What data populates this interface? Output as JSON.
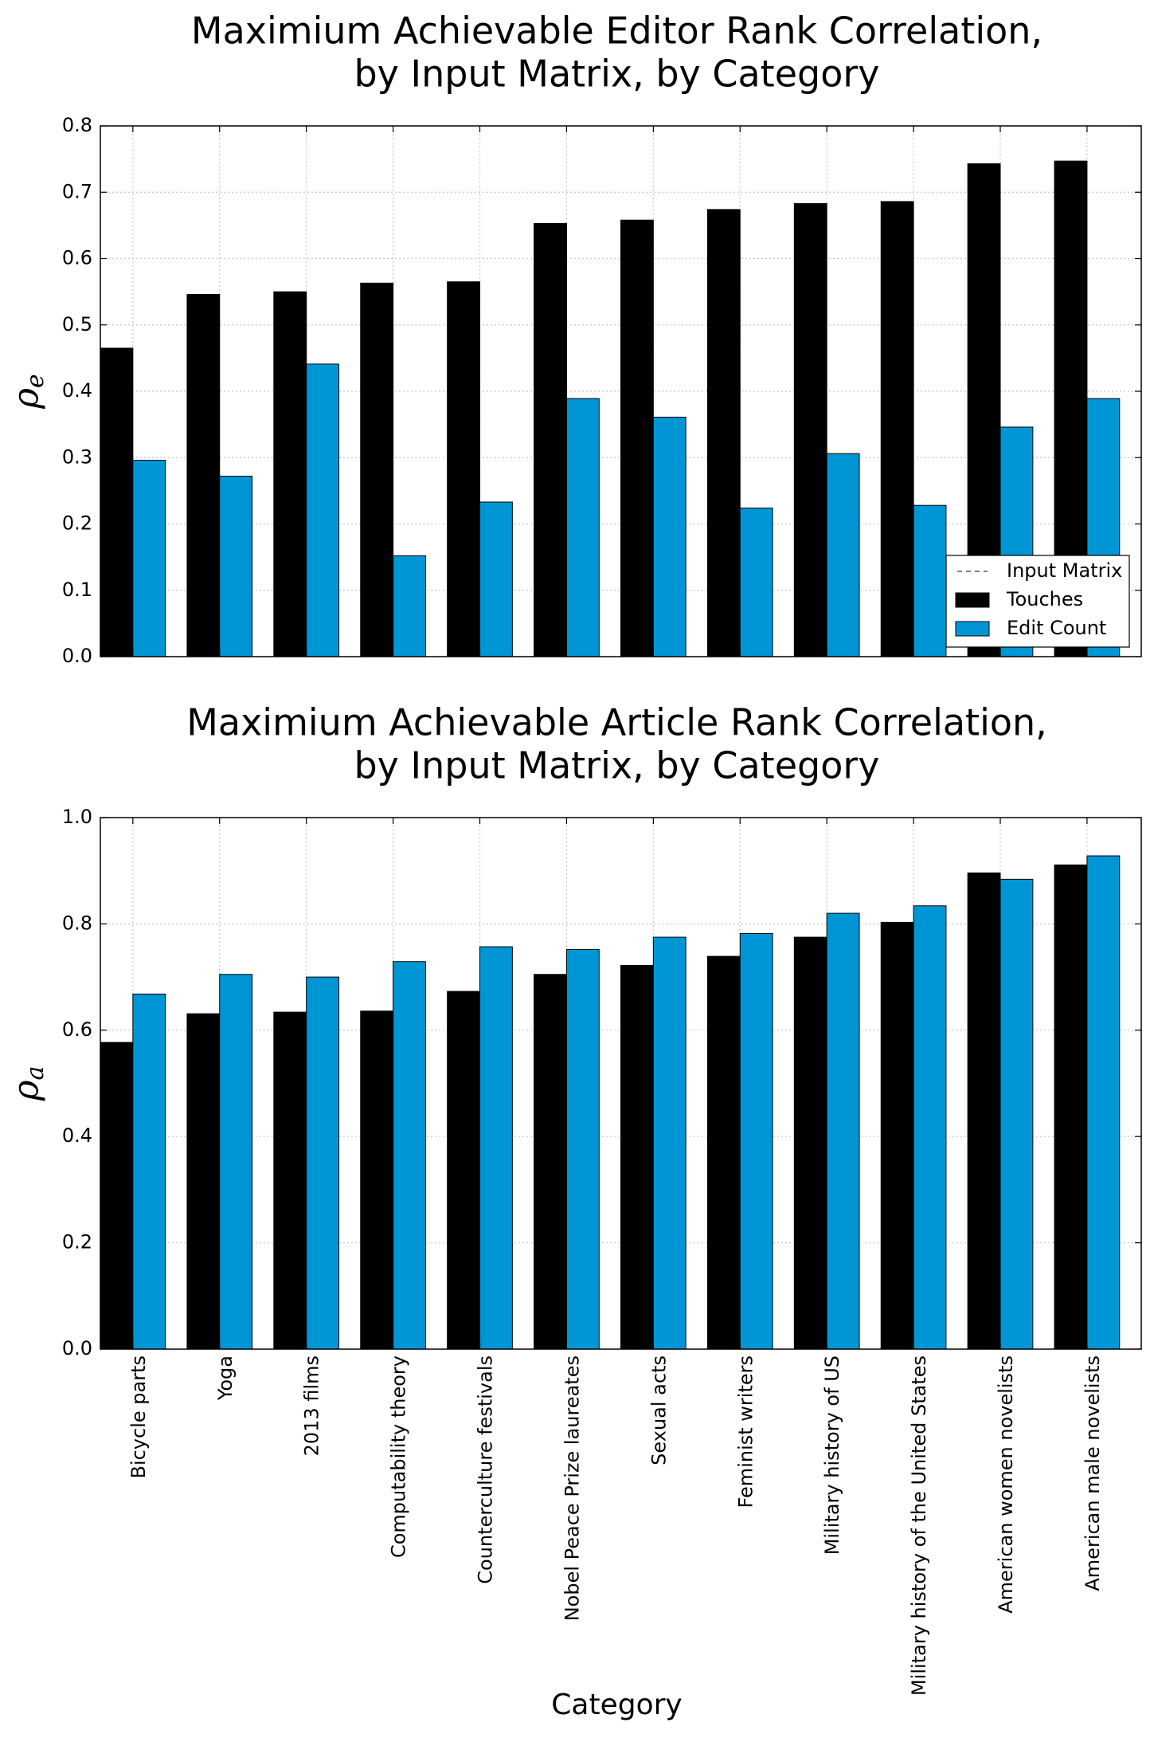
{
  "colors": {
    "touches": "#000000",
    "edit_count": "#0096d6",
    "grid": "#c8c8c8"
  },
  "chart_data": [
    {
      "type": "bar",
      "title": [
        "Maximium Achievable Editor Rank Correlation,",
        "by Input Matrix, by Category"
      ],
      "ylabel_symbol": "ρ",
      "ylabel_subscript": "e",
      "xlabel": "",
      "ylim": [
        0,
        0.8
      ],
      "yticks": [
        "0.0",
        "0.1",
        "0.2",
        "0.3",
        "0.4",
        "0.5",
        "0.6",
        "0.7",
        "0.8"
      ],
      "grid": true,
      "legend": {
        "placement": "lower-right",
        "title": "Input Matrix",
        "entries": [
          "Touches",
          "Edit Count"
        ]
      },
      "categories": [
        "Bicycle parts",
        "Yoga",
        "2013 films",
        "Computability theory",
        "Counterculture festivals",
        "Nobel Peace Prize laureates",
        "Sexual acts",
        "Feminist writers",
        "Military history of US",
        "Military history of the United States",
        "American women novelists",
        "American male novelists"
      ],
      "series": [
        {
          "name": "Touches",
          "values": [
            0.465,
            0.546,
            0.55,
            0.563,
            0.565,
            0.653,
            0.658,
            0.674,
            0.683,
            0.686,
            0.743,
            0.747
          ]
        },
        {
          "name": "Edit Count",
          "values": [
            0.296,
            0.272,
            0.441,
            0.152,
            0.233,
            0.389,
            0.361,
            0.224,
            0.306,
            0.228,
            0.346,
            0.389
          ]
        }
      ]
    },
    {
      "type": "bar",
      "title": [
        "Maximium Achievable Article Rank Correlation,",
        "by Input Matrix, by Category"
      ],
      "ylabel_symbol": "ρ",
      "ylabel_subscript": "a",
      "xlabel": "Category",
      "ylim": [
        0,
        1.0
      ],
      "yticks": [
        "0.0",
        "0.2",
        "0.4",
        "0.6",
        "0.8",
        "1.0"
      ],
      "grid": true,
      "categories": [
        "Bicycle parts",
        "Yoga",
        "2013 films",
        "Computability theory",
        "Counterculture festivals",
        "Nobel Peace Prize laureates",
        "Sexual acts",
        "Feminist writers",
        "Military history of US",
        "Military history of the United States",
        "American women novelists",
        "American male novelists"
      ],
      "series": [
        {
          "name": "Touches",
          "values": [
            0.577,
            0.631,
            0.634,
            0.636,
            0.673,
            0.705,
            0.722,
            0.739,
            0.775,
            0.803,
            0.896,
            0.911
          ]
        },
        {
          "name": "Edit Count",
          "values": [
            0.668,
            0.705,
            0.7,
            0.729,
            0.757,
            0.752,
            0.775,
            0.782,
            0.82,
            0.834,
            0.884,
            0.928
          ]
        }
      ]
    }
  ]
}
